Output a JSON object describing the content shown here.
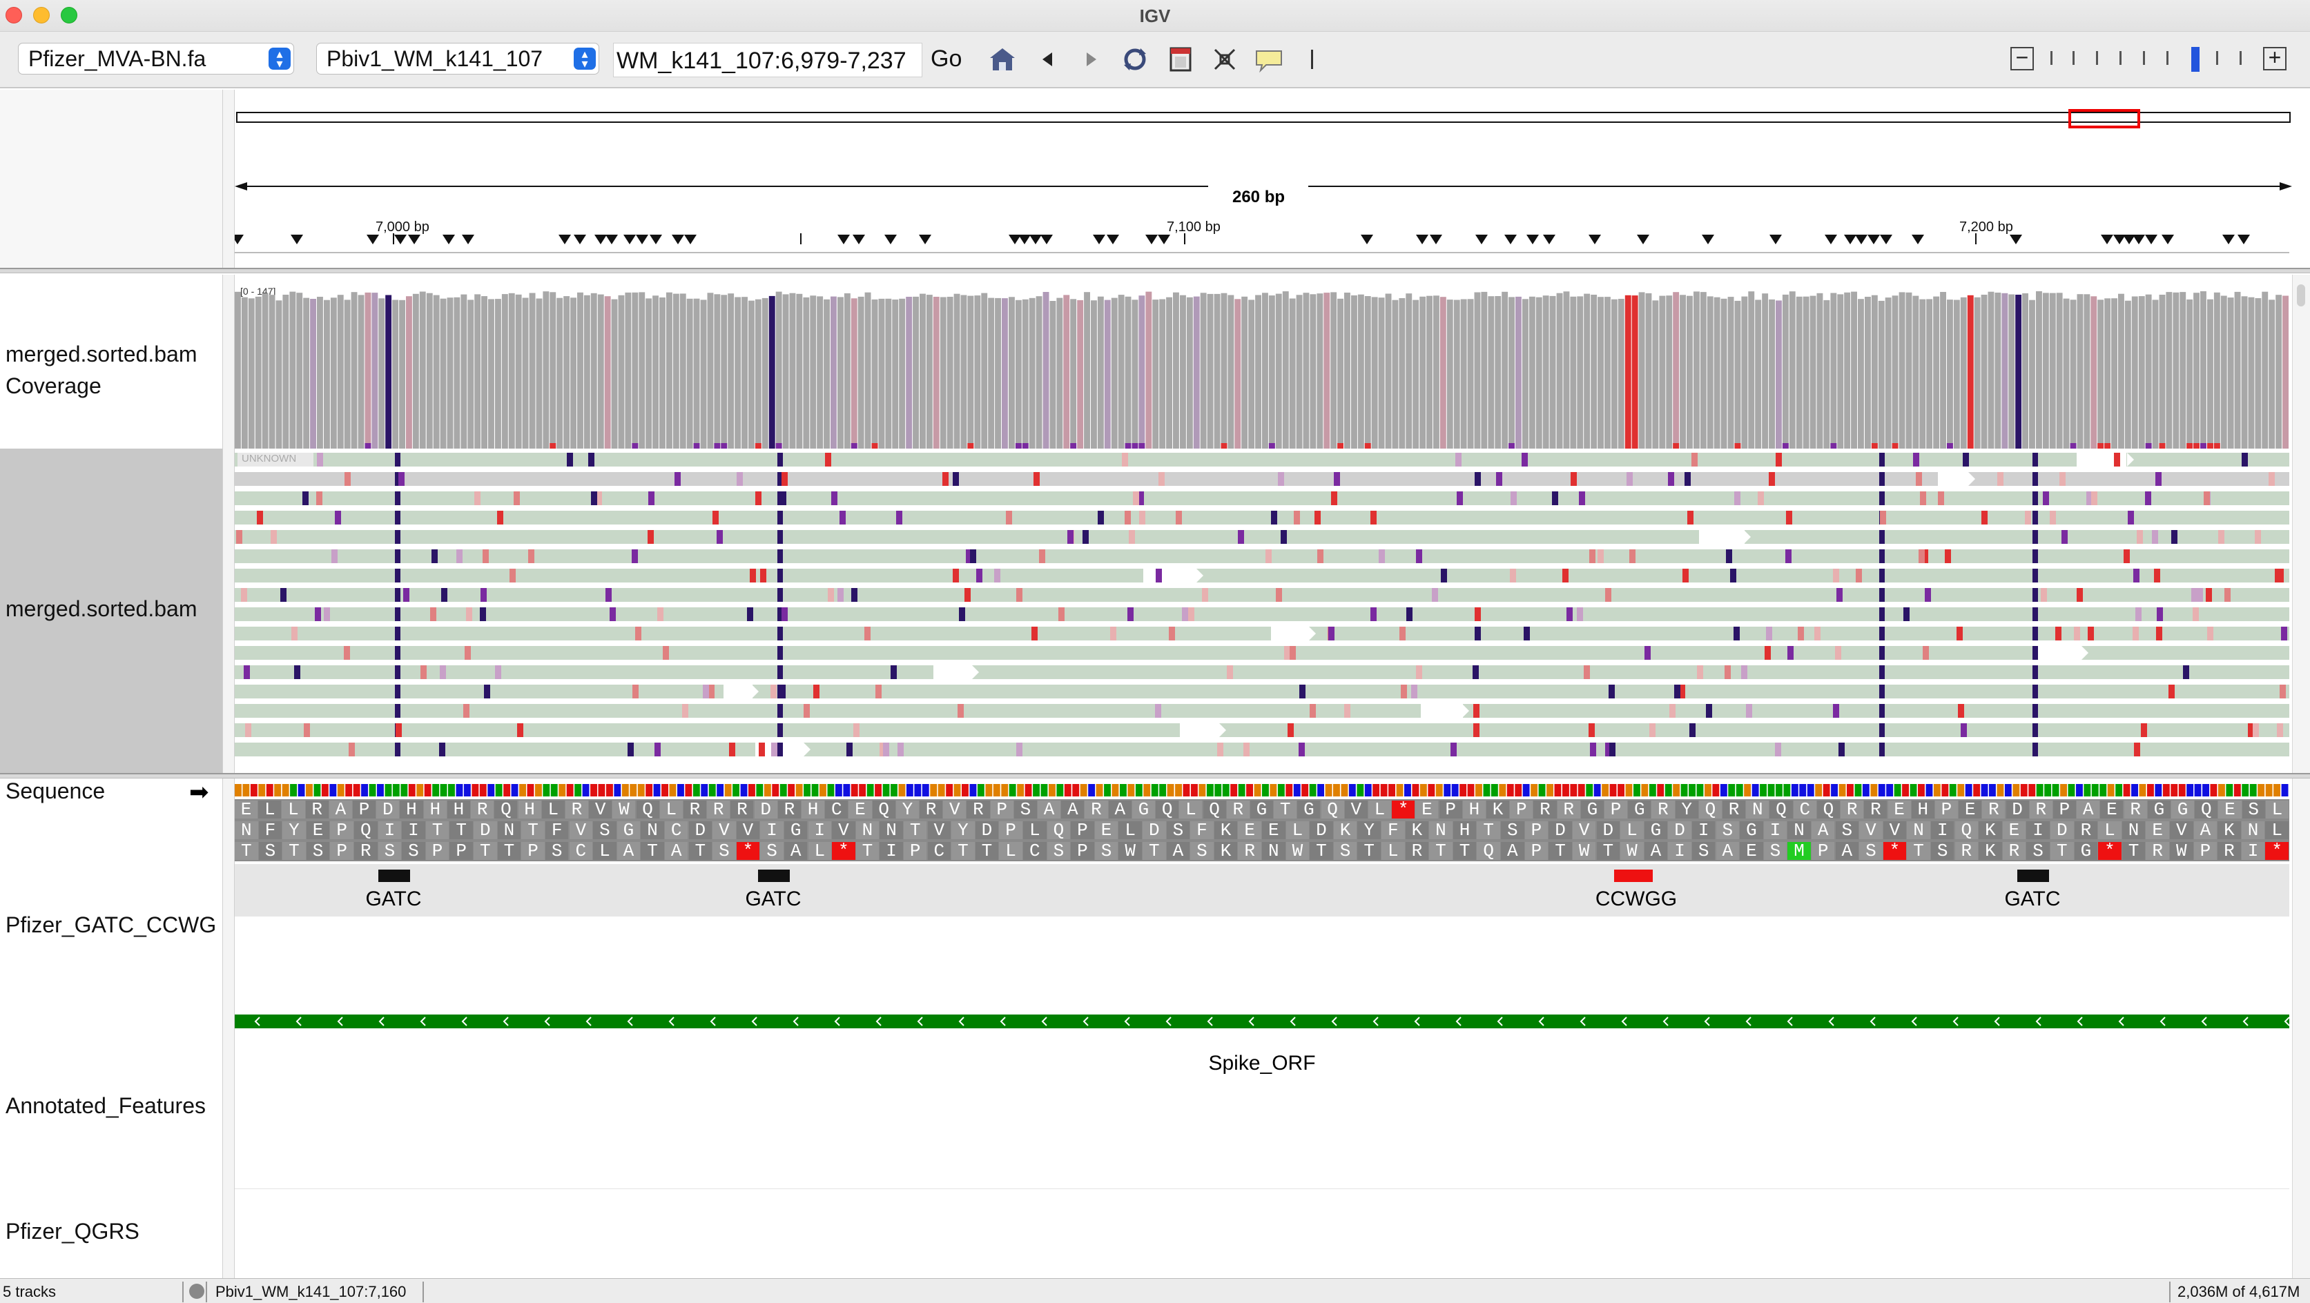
{
  "window": {
    "title": "IGV"
  },
  "toolbar": {
    "genome": "Pfizer_MVA-BN.fa",
    "chromosome": "Pbiv1_WM_k141_107",
    "locus": "WM_k141_107:6,979-7,237",
    "go_label": "Go",
    "icons": [
      "home-icon",
      "back-icon",
      "forward-icon",
      "refresh-icon",
      "resize-icon",
      "center-line-icon",
      "popup-text-icon",
      "roi-icon"
    ]
  },
  "ruler": {
    "span_label": "260 bp",
    "ticks": [
      "7,000 bp",
      "7,100 bp",
      "7,200 bp"
    ]
  },
  "coverage_track": {
    "label": "merged.sorted.bam Coverage",
    "range": "[0 - 147]"
  },
  "alignment_track": {
    "label": "merged.sorted.bam",
    "unknown_tag": "UNKNOWN"
  },
  "sequence_track": {
    "label": "Sequence",
    "arrow": "➡",
    "frame1": "ELLRAPDHHHRQHLRVWQLRRRDRHCEQYRVRPSAARAGQLQRGTGQVL*EPHKPRRGPGRYQRNQCQRREHPERDRPAERGGQESL",
    "frame2": "NFYEPQIITTDNTFVSGNCDVVIGIVNNTVYDPLQPELDSFKEELDKYFKNHTSPDVDLGDISGINASVVNIQKEIDRLNEVAKNL",
    "frame3": "TSTSPRSSPPTTPSCLATATS*SAL*TIPCTTLCSPSWTASKRNWTSTLRTTQAPTWTWAISAESMPAS*TSRKRSTG*TRWPRI*"
  },
  "motif_track": {
    "label": "Pfizer_GATC_CCWG",
    "features": [
      {
        "name": "GATC",
        "color": "#111111"
      },
      {
        "name": "GATC",
        "color": "#111111"
      },
      {
        "name": "CCWGG",
        "color": "#ee1111"
      },
      {
        "name": "GATC",
        "color": "#111111"
      }
    ]
  },
  "annotated_track": {
    "label": "Annotated_Features",
    "feature": "Spike_ORF",
    "color": "#008000"
  },
  "qgrs_track": {
    "label": "Pfizer_QGRS"
  },
  "status": {
    "tracks": "5 tracks",
    "position": "Pbiv1_WM_k141_107:7,160",
    "memory": "2,036M of 4,617M"
  },
  "colors": {
    "coverage_gray": "#a8a8a8",
    "read_fill": "#c8d8c8",
    "mismatch_a": "#e03030",
    "mismatch_c": "#7a2aa0",
    "mismatch_g": "#2a1466",
    "mismatch_t": "#e08080"
  }
}
